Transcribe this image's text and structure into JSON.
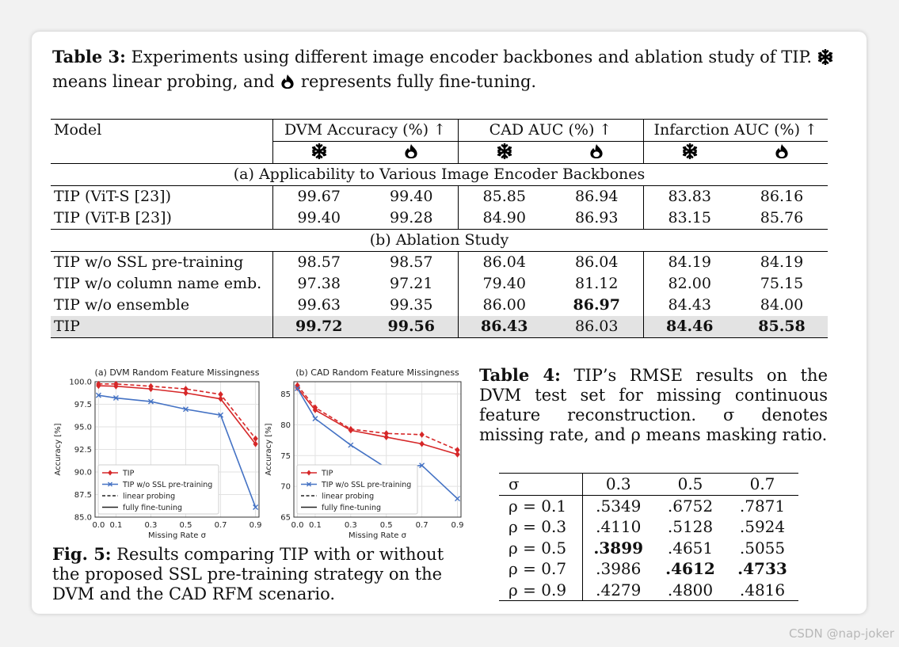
{
  "table3": {
    "caption_label": "Table 3:",
    "caption_part1": "Experiments using different image encoder backbones and ablation study of TIP.",
    "caption_part2": "means linear probing, and",
    "caption_part3": "represents fully fine-tuning.",
    "col_model": "Model",
    "groups": [
      "DVM Accuracy (%) ↑",
      "CAD AUC (%) ↑",
      "Infarction AUC (%) ↑"
    ],
    "section_a": "(a) Applicability to Various Image Encoder Backbones",
    "section_b": "(b) Ablation Study",
    "rows_a": [
      {
        "model": "TIP (ViT-S [23])",
        "values": [
          "99.67",
          "99.40",
          "85.85",
          "86.94",
          "83.83",
          "86.16"
        ]
      },
      {
        "model": "TIP (ViT-B [23])",
        "values": [
          "99.40",
          "99.28",
          "84.90",
          "86.93",
          "83.15",
          "85.76"
        ]
      }
    ],
    "rows_b": [
      {
        "model": "TIP w/o SSL pre-training",
        "values": [
          "98.57",
          "98.57",
          "86.04",
          "86.04",
          "84.19",
          "84.19"
        ]
      },
      {
        "model": "TIP w/o column name emb.",
        "values": [
          "97.38",
          "97.21",
          "79.40",
          "81.12",
          "82.00",
          "75.15"
        ]
      },
      {
        "model": "TIP w/o ensemble",
        "values": [
          "99.63",
          "99.35",
          "86.00",
          "86.97",
          "84.43",
          "84.00"
        ]
      },
      {
        "model": "TIP",
        "values": [
          "99.72",
          "99.56",
          "86.43",
          "86.03",
          "84.46",
          "85.58"
        ]
      }
    ]
  },
  "icons": {
    "linear_probing": "snowflake-icon",
    "fine_tuning": "flame-icon"
  },
  "chart_data": [
    {
      "type": "line",
      "title": "(a) DVM Random Feature Missingness",
      "xlabel": "Missing Rate σ",
      "ylabel": "Accuracy [%]",
      "x": [
        0.0,
        0.1,
        0.3,
        0.5,
        0.7,
        0.9
      ],
      "xticks": [
        "0.0",
        "0.1",
        "0.3",
        "0.5",
        "0.7",
        "0.9"
      ],
      "ylim": [
        85.0,
        100.0
      ],
      "yticks": [
        "85.0",
        "87.5",
        "90.0",
        "92.5",
        "95.0",
        "97.5",
        "100.0"
      ],
      "grid": true,
      "legend": [
        "TIP",
        "TIP w/o SSL pre-training",
        "linear probing",
        "fully fine-tuning"
      ],
      "legend_position": "bottom-left",
      "series": [
        {
          "name": "TIP",
          "style": "dashed",
          "values": [
            99.75,
            99.75,
            99.5,
            99.2,
            98.6,
            93.7
          ]
        },
        {
          "name": "TIP",
          "style": "solid",
          "values": [
            99.55,
            99.5,
            99.2,
            98.75,
            98.1,
            93.1
          ]
        },
        {
          "name": "TIP w/o SSL pre-training",
          "style": "solid",
          "values": [
            98.5,
            98.2,
            97.8,
            96.95,
            96.3,
            86.1
          ]
        }
      ]
    },
    {
      "type": "line",
      "title": "(b) CAD Random Feature Missingness",
      "xlabel": "Missing Rate σ",
      "ylabel": "Accuracy [%]",
      "x": [
        0.0,
        0.1,
        0.3,
        0.5,
        0.7,
        0.9
      ],
      "xticks": [
        "0.0",
        "0.1",
        "0.3",
        "0.5",
        "0.7",
        "0.9"
      ],
      "ylim": [
        65,
        87
      ],
      "yticks": [
        "65",
        "70",
        "75",
        "80",
        "85"
      ],
      "grid": true,
      "legend": [
        "TIP",
        "TIP w/o SSL pre-training",
        "linear probing",
        "fully fine-tuning"
      ],
      "legend_position": "bottom-left",
      "series": [
        {
          "name": "TIP",
          "style": "dashed",
          "values": [
            86.4,
            82.8,
            79.3,
            78.6,
            78.4,
            75.9
          ]
        },
        {
          "name": "TIP",
          "style": "solid",
          "values": [
            86.0,
            82.4,
            79.1,
            78.0,
            76.9,
            75.2
          ]
        },
        {
          "name": "TIP w/o SSL pre-training",
          "style": "solid",
          "values": [
            85.9,
            81.0,
            76.7,
            73.0,
            73.4,
            68.0
          ]
        }
      ]
    }
  ],
  "fig5": {
    "label": "Fig. 5:",
    "text": "Results comparing TIP with or without the proposed SSL pre-training strategy on the DVM and the CAD RFM scenario."
  },
  "table4": {
    "caption_label": "Table 4:",
    "caption": "TIP’s RMSE results on the DVM test set for missing continuous feature reconstruction. σ denotes missing rate, and ρ means masking ratio.",
    "corner": "σ",
    "cols": [
      "0.3",
      "0.5",
      "0.7"
    ],
    "rows": [
      {
        "label": "ρ = 0.1",
        "values": [
          ".5349",
          ".6752",
          ".7871"
        ]
      },
      {
        "label": "ρ = 0.3",
        "values": [
          ".4110",
          ".5128",
          ".5924"
        ]
      },
      {
        "label": "ρ = 0.5",
        "values": [
          ".3899",
          ".4651",
          ".5055"
        ]
      },
      {
        "label": "ρ = 0.7",
        "values": [
          ".3986",
          ".4612",
          ".4733"
        ]
      },
      {
        "label": "ρ = 0.9",
        "values": [
          ".4279",
          ".4800",
          ".4816"
        ]
      }
    ]
  },
  "watermark": "CSDN @nap-joker",
  "colors": {
    "tip": "#d62728",
    "ssl": "#4472c4",
    "highlight_row": "#e3e3e3"
  }
}
